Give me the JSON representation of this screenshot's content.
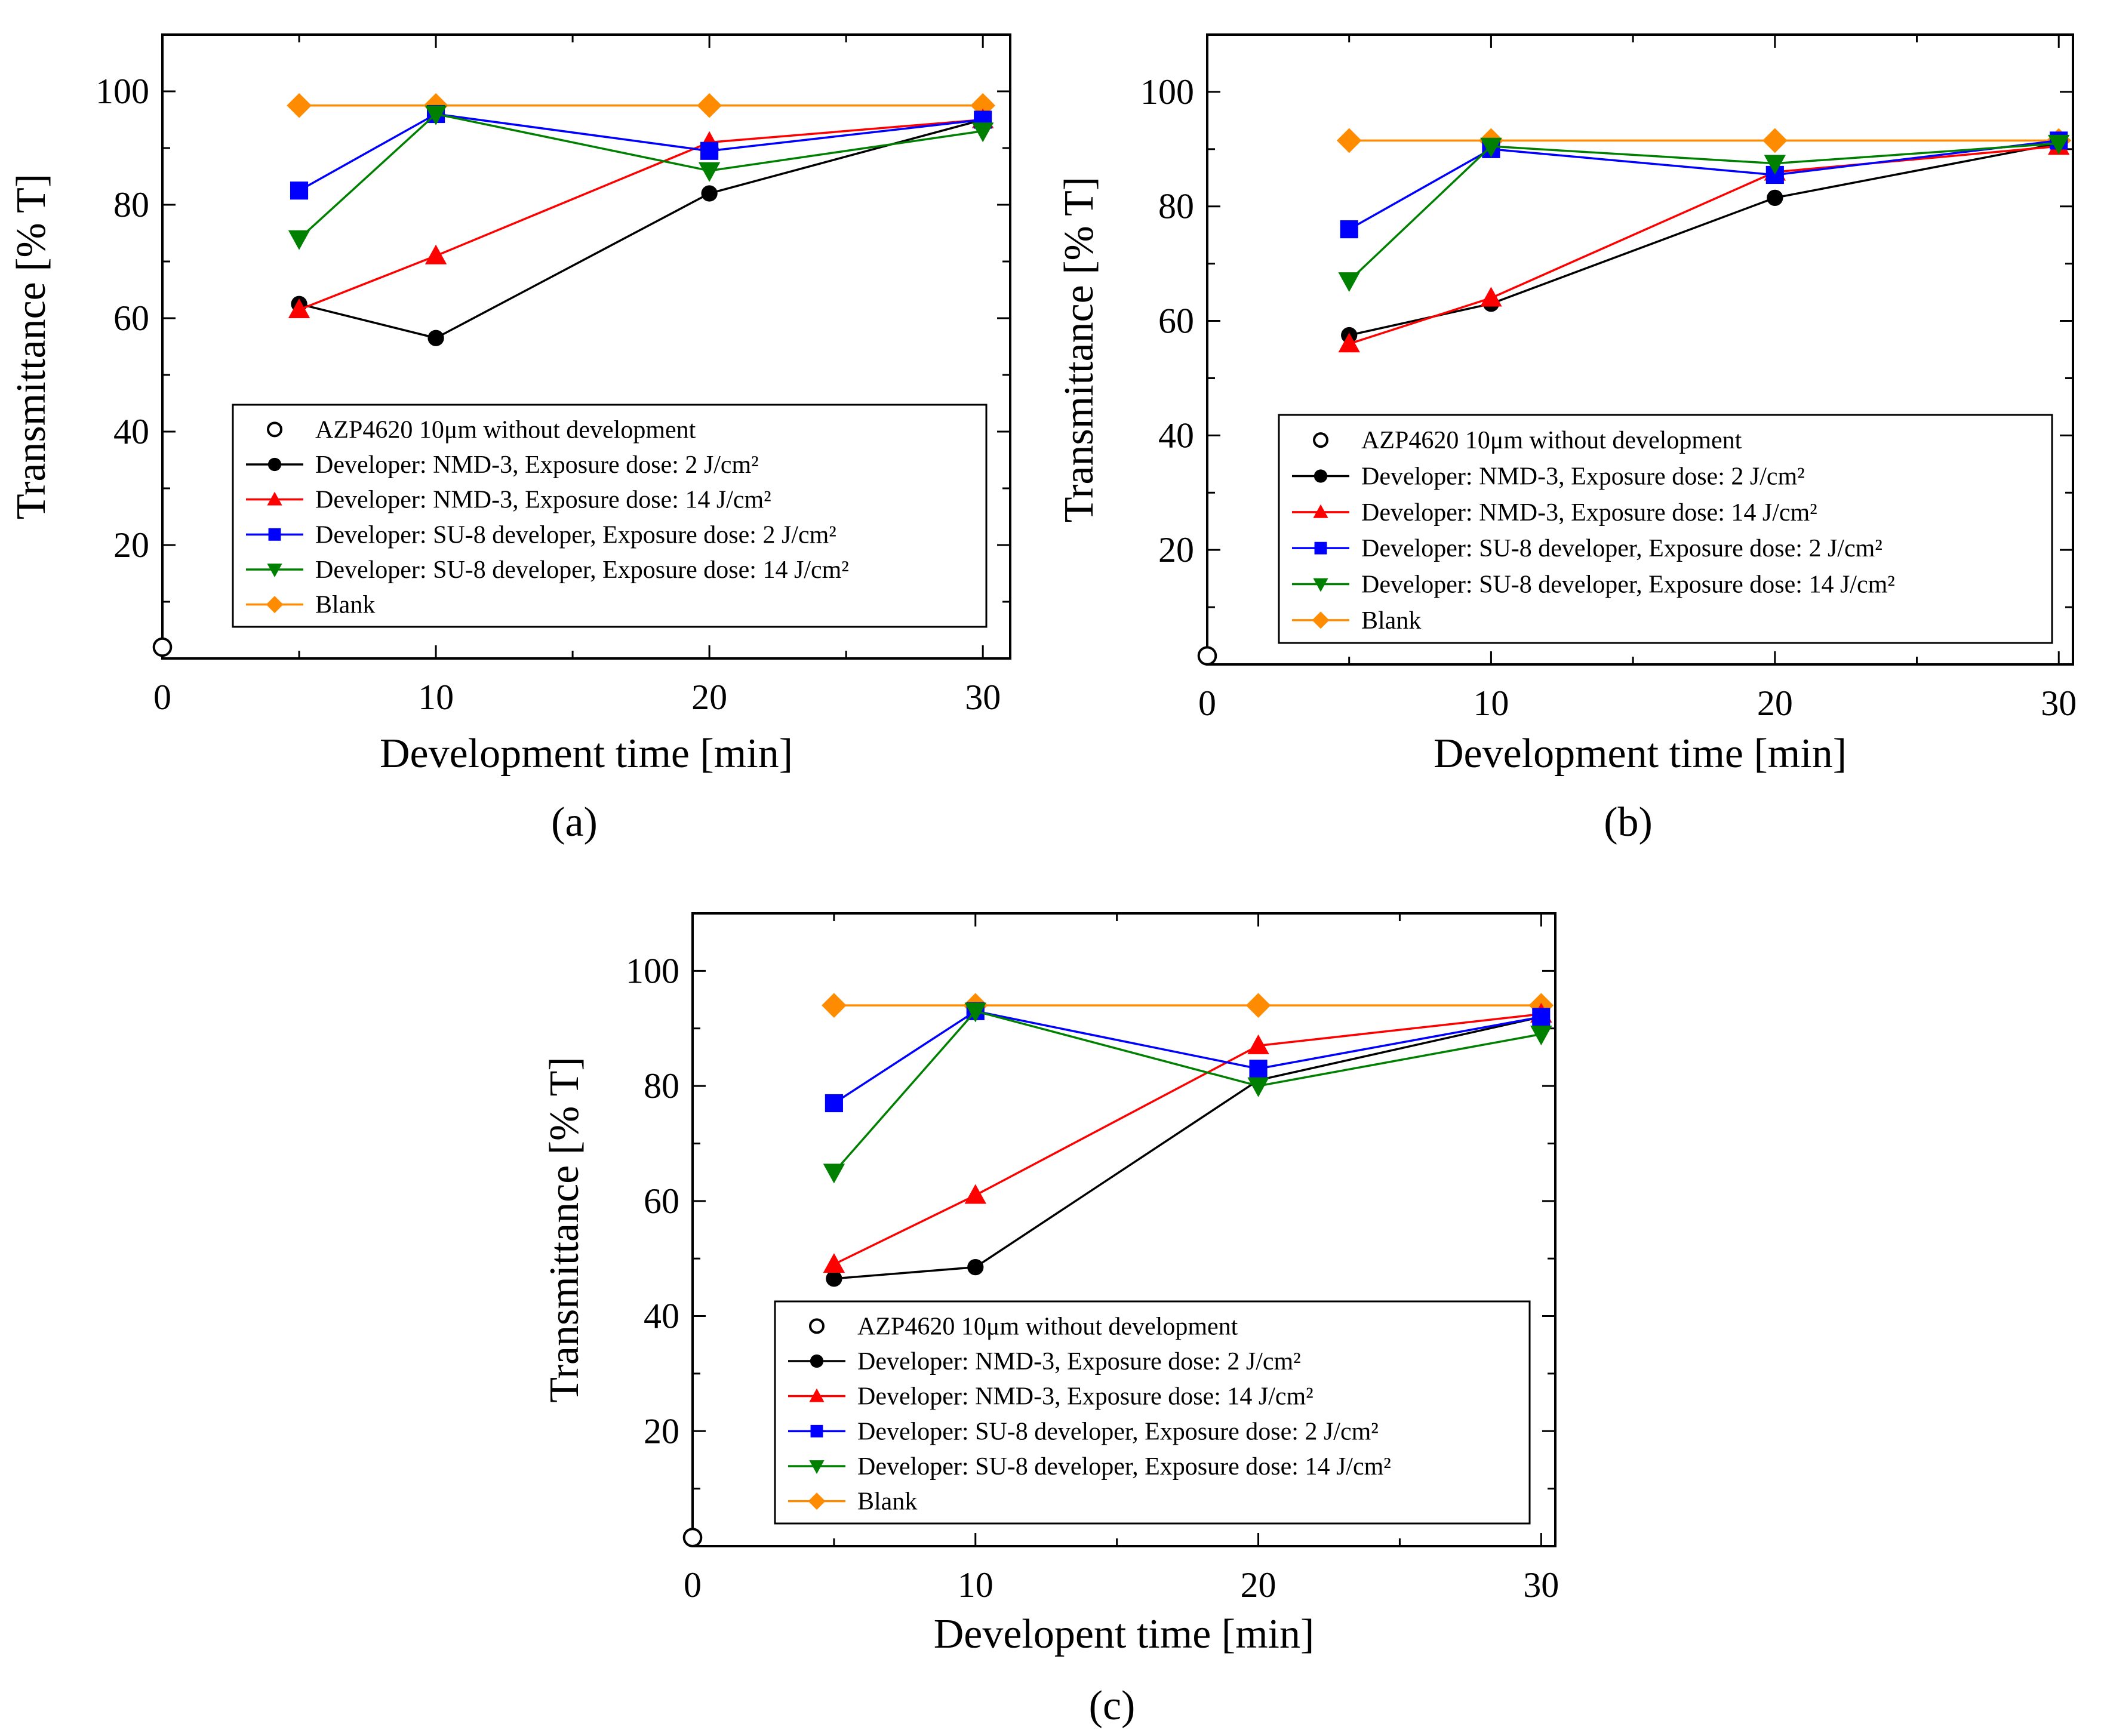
{
  "figure": {
    "panels": [
      "(a)",
      "(b)",
      "(c)"
    ],
    "series_colors": {
      "unexposed": "#000000",
      "nmd3_2": "#000000",
      "nmd3_14": "#ff0000",
      "su8_2": "#0000ff",
      "su8_14": "#008000",
      "blank": "#ff8c00"
    }
  },
  "chart_data": [
    {
      "panel": "a",
      "panel_label": "(a)",
      "type": "line",
      "xlabel": "Development time [min]",
      "ylabel": "Transmittance [% T]",
      "xlim": [
        0,
        31
      ],
      "ylim": [
        0,
        110
      ],
      "xticks": [
        0,
        10,
        20,
        30
      ],
      "xtick_labels": [
        "0",
        "10",
        "20",
        "30"
      ],
      "yticks": [
        20,
        40,
        60,
        80,
        100
      ],
      "ytick_labels": [
        "20",
        "40",
        "60",
        "80",
        "100"
      ],
      "legend_position": "lower-middle",
      "series": [
        {
          "key": "unexposed",
          "name": "AZP4620 10μm without development",
          "marker": "open-circle",
          "x": [
            0
          ],
          "y": [
            2
          ]
        },
        {
          "key": "nmd3_2",
          "name": "Developer: NMD-3, Exposure dose: 2 J/cm²",
          "marker": "circle",
          "x": [
            5,
            10,
            20,
            30
          ],
          "y": [
            62.5,
            56.5,
            82,
            95
          ]
        },
        {
          "key": "nmd3_14",
          "name": "Developer: NMD-3, Exposure dose: 14 J/cm²",
          "marker": "triangle-up",
          "x": [
            5,
            10,
            20,
            30
          ],
          "y": [
            61.5,
            71,
            91,
            95
          ]
        },
        {
          "key": "su8_2",
          "name": "Developer: SU-8 developer, Exposure dose: 2 J/cm²",
          "marker": "square",
          "x": [
            5,
            10,
            20,
            30
          ],
          "y": [
            82.5,
            96,
            89.5,
            95
          ]
        },
        {
          "key": "su8_14",
          "name": "Developer: SU-8 developer, Exposure dose: 14 J/cm²",
          "marker": "triangle-down",
          "x": [
            5,
            10,
            20,
            30
          ],
          "y": [
            74,
            96,
            86,
            93
          ]
        },
        {
          "key": "blank",
          "name": "Blank",
          "marker": "diamond",
          "x": [
            5,
            10,
            20,
            30
          ],
          "y": [
            97.5,
            97.5,
            97.5,
            97.5
          ]
        }
      ]
    },
    {
      "panel": "b",
      "panel_label": "(b)",
      "type": "line",
      "xlabel": "Development time [min]",
      "ylabel": "Transmittance [% T]",
      "xlim": [
        0,
        30.5
      ],
      "ylim": [
        0,
        110
      ],
      "xticks": [
        0,
        10,
        20,
        30
      ],
      "xtick_labels": [
        "0",
        "10",
        "20",
        "30"
      ],
      "yticks": [
        20,
        40,
        60,
        80,
        100
      ],
      "ytick_labels": [
        "20",
        "40",
        "60",
        "80",
        "100"
      ],
      "legend_position": "lower-middle",
      "series": [
        {
          "key": "unexposed",
          "name": "AZP4620 10μm without development",
          "marker": "open-circle",
          "x": [
            0
          ],
          "y": [
            1.5
          ]
        },
        {
          "key": "nmd3_2",
          "name": "Developer: NMD-3, Exposure dose: 2 J/cm²",
          "marker": "circle",
          "x": [
            5,
            10,
            20,
            30
          ],
          "y": [
            57.5,
            63,
            81.5,
            91
          ]
        },
        {
          "key": "nmd3_14",
          "name": "Developer: NMD-3, Exposure dose: 14 J/cm²",
          "marker": "triangle-up",
          "x": [
            5,
            10,
            20,
            30
          ],
          "y": [
            56,
            64,
            86,
            90.5
          ]
        },
        {
          "key": "su8_2",
          "name": "Developer: SU-8 developer, Exposure dose: 2 J/cm²",
          "marker": "square",
          "x": [
            5,
            10,
            20,
            30
          ],
          "y": [
            76,
            90,
            85.5,
            91.5
          ]
        },
        {
          "key": "su8_14",
          "name": "Developer: SU-8 developer, Exposure dose: 14 J/cm²",
          "marker": "triangle-down",
          "x": [
            5,
            10,
            20,
            30
          ],
          "y": [
            67,
            90.5,
            87.5,
            91
          ]
        },
        {
          "key": "blank",
          "name": "Blank",
          "marker": "diamond",
          "x": [
            5,
            10,
            20,
            30
          ],
          "y": [
            91.5,
            91.5,
            91.5,
            91.5
          ]
        }
      ]
    },
    {
      "panel": "c",
      "panel_label": "(c)",
      "type": "line",
      "xlabel": "Developent time [min]",
      "ylabel": "Transmittance [% T]",
      "xlim": [
        0,
        30.5
      ],
      "ylim": [
        0,
        110
      ],
      "xticks": [
        0,
        10,
        20,
        30
      ],
      "xtick_labels": [
        "0",
        "10",
        "20",
        "30"
      ],
      "yticks": [
        20,
        40,
        60,
        80,
        100
      ],
      "ytick_labels": [
        "20",
        "40",
        "60",
        "80",
        "100"
      ],
      "legend_position": "lower-middle",
      "series": [
        {
          "key": "unexposed",
          "name": "AZP4620 10μm without development",
          "marker": "open-circle",
          "x": [
            0
          ],
          "y": [
            1.5
          ]
        },
        {
          "key": "nmd3_2",
          "name": "Developer: NMD-3, Exposure dose: 2 J/cm²",
          "marker": "circle",
          "x": [
            5,
            10,
            20,
            30
          ],
          "y": [
            46.5,
            48.5,
            81,
            92
          ]
        },
        {
          "key": "nmd3_14",
          "name": "Developer: NMD-3, Exposure dose: 14 J/cm²",
          "marker": "triangle-up",
          "x": [
            5,
            10,
            20,
            30
          ],
          "y": [
            49,
            61,
            87,
            92.5
          ]
        },
        {
          "key": "su8_2",
          "name": "Developer: SU-8 developer, Exposure dose: 2 J/cm²",
          "marker": "square",
          "x": [
            5,
            10,
            20,
            30
          ],
          "y": [
            77,
            93,
            83,
            92
          ]
        },
        {
          "key": "su8_14",
          "name": "Developer: SU-8 developer, Exposure dose: 14 J/cm²",
          "marker": "triangle-down",
          "x": [
            5,
            10,
            20,
            30
          ],
          "y": [
            65,
            93,
            80,
            89
          ]
        },
        {
          "key": "blank",
          "name": "Blank",
          "marker": "diamond",
          "x": [
            5,
            10,
            20,
            30
          ],
          "y": [
            94,
            94,
            94,
            94
          ]
        }
      ]
    }
  ]
}
